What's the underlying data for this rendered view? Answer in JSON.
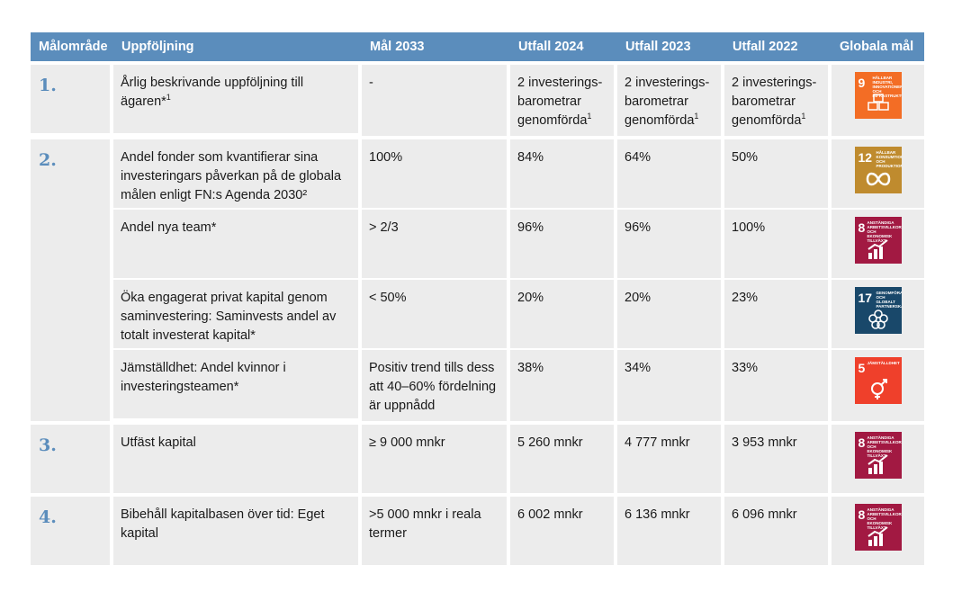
{
  "headers": {
    "col1": "Målområde",
    "col2": "Uppföljning",
    "col3": "Mål 2033",
    "col4": "Utfall 2024",
    "col5": "Utfall 2023",
    "col6": "Utfall 2022",
    "col7": "Globala mål"
  },
  "rows": [
    {
      "num": "1.",
      "text": "Årlig beskrivande uppföljning till ägaren*",
      "text_sup": "1",
      "goal": "-",
      "y2024": "2 investerings-barometrar genomförda",
      "y2024_sup": "1",
      "y2023": "2 investerings-barometrar genomförda",
      "y2023_sup": "1",
      "y2022": "2 investerings-barometrar genomförda",
      "y2022_sup": "1",
      "sdg": {
        "number": "9",
        "label": "Hållbar industri, innovationer och infrastruktur",
        "color": "#f36d25",
        "icon": "industry-icon"
      }
    },
    {
      "num": "2.",
      "text": "Andel fonder som kvantifierar sina investeringars påverkan på de globala målen enligt FN:s Agenda 2030²",
      "goal": "100%",
      "y2024": "84%",
      "y2023": "64%",
      "y2022": "50%",
      "sdg": {
        "number": "12",
        "label": "Hållbar konsumtion och produktion",
        "color": "#bf8b2e",
        "icon": "infinity-icon"
      }
    },
    {
      "num": "",
      "text": "Andel nya team*",
      "goal": "> 2/3",
      "y2024": "96%",
      "y2023": "96%",
      "y2022": "100%",
      "sdg": {
        "number": "8",
        "label": "Anständiga arbetsvillkor och ekonomisk tillväxt",
        "color": "#a21942",
        "icon": "growth-icon"
      }
    },
    {
      "num": "",
      "text": "Öka engagerat privat kapital genom saminvestering: Saminvests andel av totalt investerat kapital*",
      "goal": "< 50%",
      "y2024": "20%",
      "y2023": "20%",
      "y2022": "23%",
      "sdg": {
        "number": "17",
        "label": "Genomförande och globalt partnerskap",
        "color": "#19486a",
        "icon": "partnership-icon"
      }
    },
    {
      "num": "",
      "text": "Jämställdhet: Andel kvinnor i investeringsteamen*",
      "goal": "Positiv trend tills dess att 40–60% fördelning är uppnådd",
      "y2024": "38%",
      "y2023": "34%",
      "y2022": "33%",
      "sdg": {
        "number": "5",
        "label": "Jämställdhet",
        "color": "#ef402b",
        "icon": "gender-icon"
      }
    },
    {
      "num": "3.",
      "text": "Utfäst kapital",
      "goal": "≥ 9 000 mnkr",
      "y2024": "5 260 mnkr",
      "y2023": "4 777 mnkr",
      "y2022": "3 953 mnkr",
      "sdg": {
        "number": "8",
        "label": "Anständiga arbetsvillkor och ekonomisk tillväxt",
        "color": "#a21942",
        "icon": "growth-icon"
      }
    },
    {
      "num": "4.",
      "text": "Bibehåll kapitalbasen över tid: Eget kapital",
      "goal": ">5 000 mnkr i reala termer",
      "y2024": "6 002 mnkr",
      "y2023": "6 136 mnkr",
      "y2022": "6 096 mnkr",
      "sdg": {
        "number": "8",
        "label": "Anständiga arbetsvillkor och ekonomisk tillväxt",
        "color": "#a21942",
        "icon": "growth-icon"
      }
    }
  ]
}
